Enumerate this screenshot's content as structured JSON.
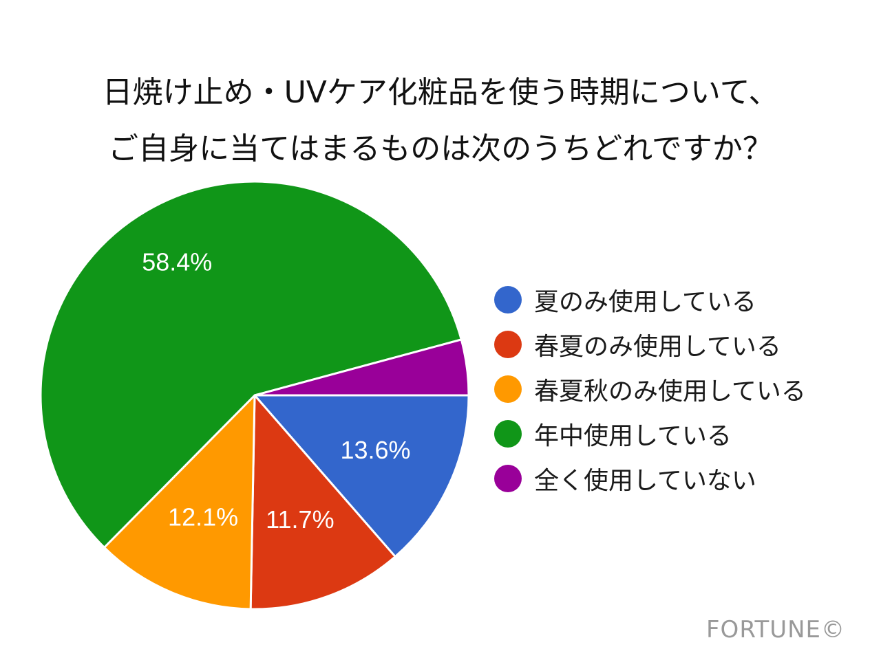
{
  "title": {
    "line1": "日焼け止め・UVケア化粧品を使う時期について、",
    "line2": "ご自身に当てはまるものは次のうちどれですか？"
  },
  "legend": [
    {
      "label": "夏のみ使用している",
      "color": "#3366cc"
    },
    {
      "label": "春夏のみ使用している",
      "color": "#dc3912"
    },
    {
      "label": "春夏秋のみ使用している",
      "color": "#ff9900"
    },
    {
      "label": "年中使用している",
      "color": "#109618"
    },
    {
      "label": "全く使用していない",
      "color": "#990099"
    }
  ],
  "watermark": "FORTUNE©",
  "chart_data": {
    "type": "pie",
    "title": "日焼け止め・UVケア化粧品を使う時期について、ご自身に当てはまるものは次のうちどれですか？",
    "categories": [
      "夏のみ使用している",
      "春夏のみ使用している",
      "春夏秋のみ使用している",
      "年中使用している",
      "全く使用していない"
    ],
    "values": [
      13.6,
      11.7,
      12.1,
      58.4,
      4.2
    ],
    "labels": [
      "13.6%",
      "11.7%",
      "12.1%",
      "58.4%",
      ""
    ],
    "colors": [
      "#3366cc",
      "#dc3912",
      "#ff9900",
      "#109618",
      "#990099"
    ],
    "start_angle": "3 o'clock, clockwise",
    "legend_position": "right"
  }
}
